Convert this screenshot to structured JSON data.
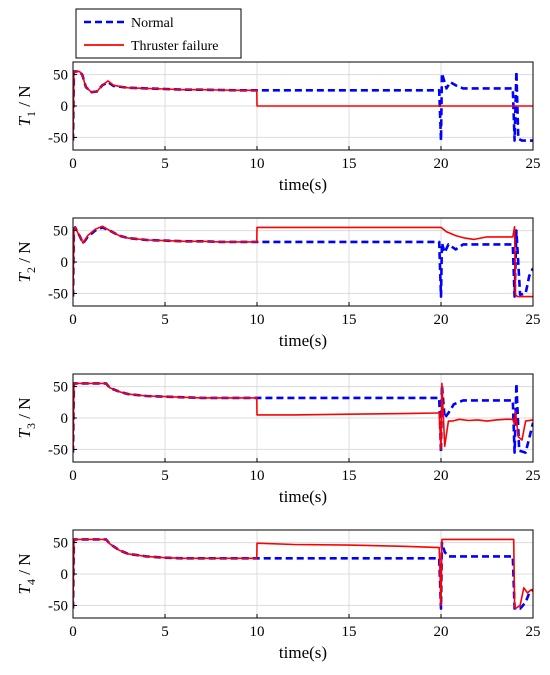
{
  "legend": {
    "items": [
      {
        "label": "Normal",
        "color": "#0000ff",
        "style": "dashed"
      },
      {
        "label": "Thruster failure",
        "color": "#ff0000",
        "style": "solid"
      }
    ]
  },
  "chart_data": [
    {
      "type": "line",
      "ylabel_main": "T",
      "ylabel_sub": "1",
      "ylabel_unit": " / N",
      "xlabel": "time(s)",
      "xlim": [
        0,
        25
      ],
      "ylim": [
        -70,
        70
      ],
      "xticks": [
        0,
        5,
        10,
        15,
        20,
        25
      ],
      "yticks": [
        -50,
        0,
        50
      ],
      "grid": true,
      "series": [
        {
          "name": "Normal",
          "color": "#0000ff",
          "style": "dashed",
          "x": [
            0,
            0.05,
            0.12,
            0.2,
            0.35,
            0.5,
            0.7,
            1.0,
            1.3,
            1.6,
            1.9,
            2.2,
            3,
            4,
            5,
            6,
            7,
            8,
            9,
            10,
            12,
            15,
            18,
            19.9,
            20.0,
            20.05,
            20.15,
            20.3,
            20.5,
            20.8,
            21.2,
            22,
            23,
            23.9,
            24.0,
            24.1,
            24.2,
            24.4,
            25
          ],
          "y": [
            -55,
            55,
            55,
            55,
            55,
            50,
            30,
            22,
            23,
            33,
            38,
            32,
            29,
            28,
            27,
            26,
            26,
            25.5,
            25,
            25,
            25,
            25,
            25,
            25,
            -55,
            52,
            42,
            28,
            38,
            33,
            28,
            28,
            28,
            28,
            -55,
            55,
            -52,
            -55,
            -55
          ]
        },
        {
          "name": "Thruster failure",
          "color": "#ff0000",
          "style": "solid",
          "x": [
            0,
            0.05,
            0.12,
            0.2,
            0.35,
            0.5,
            0.7,
            1.0,
            1.3,
            1.6,
            1.9,
            2.2,
            3,
            4,
            5,
            6,
            7,
            8,
            9,
            9.99,
            10.0,
            15,
            20,
            24,
            25
          ],
          "y": [
            -55,
            55,
            55,
            55,
            55,
            50,
            30,
            22,
            23,
            33,
            40,
            33,
            29,
            28,
            27,
            26,
            26,
            25.5,
            25,
            25,
            0,
            0,
            0,
            0,
            0
          ]
        }
      ]
    },
    {
      "type": "line",
      "ylabel_main": "T",
      "ylabel_sub": "2",
      "ylabel_unit": " / N",
      "xlabel": "time(s)",
      "xlim": [
        0,
        25
      ],
      "ylim": [
        -70,
        70
      ],
      "xticks": [
        0,
        5,
        10,
        15,
        20,
        25
      ],
      "yticks": [
        -50,
        0,
        50
      ],
      "grid": true,
      "series": [
        {
          "name": "Normal",
          "color": "#0000ff",
          "style": "dashed",
          "x": [
            0,
            0.05,
            0.12,
            0.2,
            0.35,
            0.55,
            0.8,
            1.2,
            1.6,
            2.0,
            2.5,
            3,
            4,
            5,
            6,
            7,
            8,
            9,
            10,
            15,
            19.9,
            20.0,
            20.05,
            20.2,
            20.4,
            20.8,
            21.2,
            22,
            23,
            23.9,
            24.0,
            24.1,
            24.3,
            24.6,
            24.8,
            25
          ],
          "y": [
            -55,
            52,
            55,
            50,
            42,
            30,
            40,
            50,
            55,
            50,
            42,
            38,
            35,
            34,
            33,
            33,
            32,
            32,
            32,
            32,
            32,
            -55,
            30,
            15,
            28,
            20,
            28,
            28,
            28,
            28,
            -55,
            50,
            -52,
            -50,
            -22,
            -10
          ]
        },
        {
          "name": "Thruster failure",
          "color": "#ff0000",
          "style": "solid",
          "x": [
            0,
            0.05,
            0.12,
            0.2,
            0.35,
            0.55,
            0.8,
            1.2,
            1.6,
            2.0,
            2.5,
            3,
            4,
            5,
            6,
            7,
            8,
            9,
            9.99,
            10.0,
            15,
            20,
            20.3,
            20.8,
            21.3,
            21.8,
            22.5,
            23.5,
            23.9,
            24.0,
            24.05,
            24.15,
            25
          ],
          "y": [
            -55,
            52,
            55,
            50,
            42,
            30,
            42,
            52,
            57,
            50,
            42,
            38,
            35,
            34,
            33,
            33,
            32,
            32,
            32,
            55,
            55,
            55,
            48,
            42,
            38,
            36,
            40,
            40,
            40,
            56,
            -52,
            -55,
            -55
          ]
        }
      ]
    },
    {
      "type": "line",
      "ylabel_main": "T",
      "ylabel_sub": "3",
      "ylabel_unit": " / N",
      "xlabel": "time(s)",
      "xlim": [
        0,
        25
      ],
      "ylim": [
        -70,
        70
      ],
      "xticks": [
        0,
        5,
        10,
        15,
        20,
        25
      ],
      "yticks": [
        -50,
        0,
        50
      ],
      "grid": true,
      "series": [
        {
          "name": "Normal",
          "color": "#0000ff",
          "style": "dashed",
          "x": [
            0,
            0.05,
            0.12,
            0.3,
            1.0,
            1.8,
            2.0,
            2.5,
            3,
            4,
            5,
            6,
            7,
            8,
            9,
            10,
            15,
            19.9,
            20.0,
            20.05,
            20.2,
            20.4,
            20.7,
            21.2,
            22,
            23,
            23.9,
            24.0,
            24.1,
            24.25,
            24.6,
            25
          ],
          "y": [
            -55,
            55,
            55,
            55,
            55,
            55,
            48,
            42,
            38,
            35,
            34,
            33,
            32,
            32,
            32,
            32,
            32,
            32,
            -55,
            52,
            0,
            8,
            22,
            28,
            28,
            28,
            28,
            -55,
            55,
            -52,
            -55,
            -8
          ]
        },
        {
          "name": "Thruster failure",
          "color": "#ff0000",
          "style": "solid",
          "x": [
            0,
            0.05,
            0.12,
            0.3,
            1.0,
            1.8,
            2.0,
            2.5,
            3,
            4,
            5,
            6,
            7,
            8,
            9,
            9.99,
            10.0,
            12,
            15,
            18,
            19.8,
            19.9,
            20.0,
            20.05,
            20.2,
            20.4,
            20.6,
            21,
            21.5,
            22,
            22.5,
            23,
            23.5,
            23.9,
            24.0,
            24.05,
            24.2,
            24.4,
            24.6,
            25
          ],
          "y": [
            -55,
            55,
            55,
            55,
            55,
            55,
            48,
            42,
            38,
            35,
            34,
            33,
            32,
            32,
            32,
            32,
            5,
            5,
            6,
            7,
            8,
            8,
            -50,
            55,
            -45,
            -5,
            -5,
            -2,
            -4,
            -3,
            -5,
            -3,
            -2,
            -2,
            -10,
            10,
            -30,
            -35,
            -5,
            -3
          ]
        }
      ]
    },
    {
      "type": "line",
      "ylabel_main": "T",
      "ylabel_sub": "4",
      "ylabel_unit": " / N",
      "xlabel": "time(s)",
      "xlim": [
        0,
        25
      ],
      "ylim": [
        -70,
        70
      ],
      "xticks": [
        0,
        5,
        10,
        15,
        20,
        25
      ],
      "yticks": [
        -50,
        0,
        50
      ],
      "grid": true,
      "series": [
        {
          "name": "Normal",
          "color": "#0000ff",
          "style": "dashed",
          "x": [
            0,
            0.05,
            0.12,
            0.3,
            1.0,
            1.8,
            2.0,
            2.5,
            3,
            4,
            5,
            6,
            7,
            8,
            9,
            10,
            15,
            19.9,
            20.0,
            20.05,
            20.2,
            20.4,
            21,
            22,
            23,
            23.9,
            24.0,
            24.1,
            24.3,
            24.6,
            24.8,
            25
          ],
          "y": [
            -55,
            55,
            55,
            55,
            55,
            55,
            48,
            38,
            32,
            28,
            26,
            25,
            25,
            25,
            25,
            25,
            25,
            25,
            -55,
            50,
            35,
            28,
            28,
            28,
            28,
            28,
            -55,
            -55,
            -55,
            -45,
            -30,
            -25
          ]
        },
        {
          "name": "Thruster failure",
          "color": "#ff0000",
          "style": "solid",
          "x": [
            0,
            0.05,
            0.12,
            0.3,
            1.0,
            1.8,
            2.0,
            2.5,
            3,
            4,
            5,
            6,
            7,
            8,
            9,
            9.99,
            10.0,
            12,
            15,
            18,
            19.9,
            20.0,
            20.05,
            22,
            23.95,
            24.0,
            24.05,
            24.3,
            24.5,
            24.7,
            24.9,
            25
          ],
          "y": [
            -55,
            55,
            55,
            55,
            55,
            55,
            48,
            38,
            32,
            28,
            26,
            25,
            25,
            25,
            25,
            25,
            49,
            47,
            46,
            44,
            42,
            -50,
            55,
            55,
            55,
            -52,
            -55,
            -50,
            -22,
            -30,
            -25,
            -28
          ]
        }
      ]
    }
  ]
}
